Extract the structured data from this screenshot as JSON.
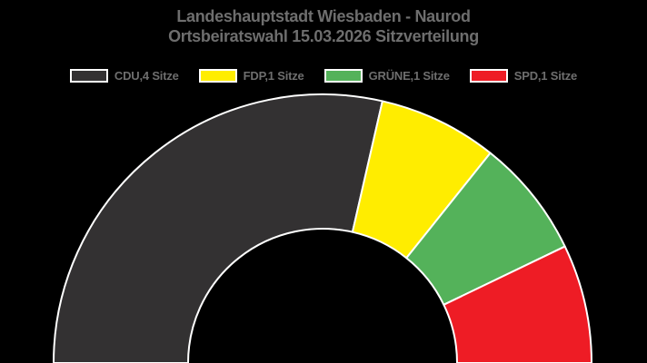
{
  "title": {
    "line1": "Landeshauptstadt Wiesbaden - Naurod",
    "line2": "Ortsbeiratswahl 15.03.2026 Sitzverteilung"
  },
  "colors": {
    "background": "#000000",
    "title_text": "#6e6e6e",
    "legend_text": "#6e6e6e",
    "slice_border": "#ffffff"
  },
  "legend": {
    "items": [
      {
        "label": "CDU,4 Sitze"
      },
      {
        "label": "FDP,1 Sitze"
      },
      {
        "label": "GRÜNE,1 Sitze"
      },
      {
        "label": "SPD,1 Sitze"
      }
    ]
  },
  "chart_data": {
    "type": "pie",
    "variant": "half-donut",
    "title": "Landeshauptstadt Wiesbaden - Naurod",
    "subtitle": "Ortsbeiratswahl 15.03.2026 Sitzverteilung",
    "unit": "Sitze",
    "total_seats": 7,
    "start_angle_deg": 180,
    "end_angle_deg": 0,
    "legend_position": "top-center",
    "series": [
      {
        "key": "cdu",
        "name": "CDU",
        "seats": 4,
        "color": "#333132",
        "legend_label": "CDU,4 Sitze"
      },
      {
        "key": "fdp",
        "name": "FDP",
        "seats": 1,
        "color": "#ffed00",
        "legend_label": "FDP,1 Sitze"
      },
      {
        "key": "gruene",
        "name": "GRÜNE",
        "seats": 1,
        "color": "#54b25a",
        "legend_label": "GRÜNE,1 Sitze"
      },
      {
        "key": "spd",
        "name": "SPD",
        "seats": 1,
        "color": "#ee1c25",
        "legend_label": "SPD,1 Sitze"
      }
    ]
  }
}
